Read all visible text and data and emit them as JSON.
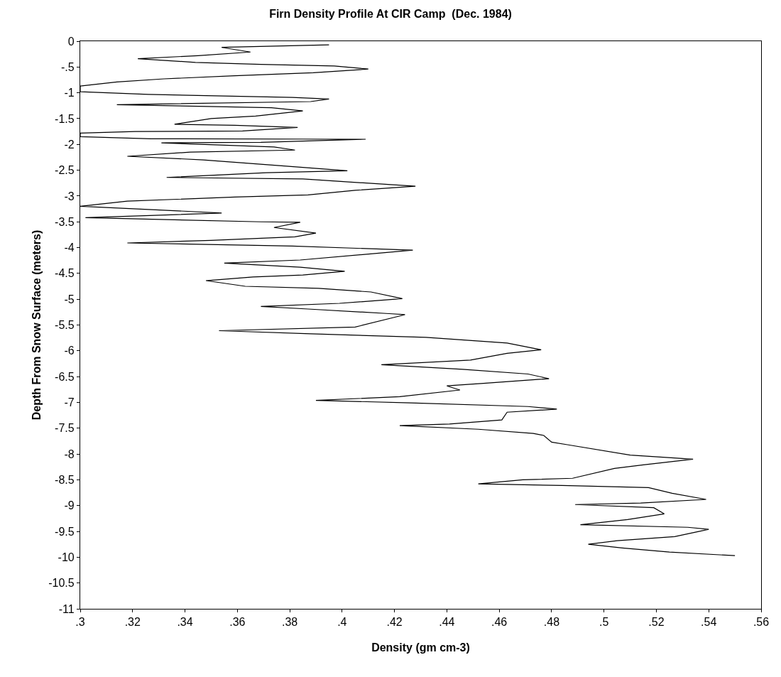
{
  "chart_data": {
    "type": "line",
    "title": "Firn Density Profile At CIR Camp  (Dec. 1984)",
    "xlabel": "Density (gm cm-3)",
    "ylabel": "Depth From Snow Surface (meters)",
    "xlim": [
      0.3,
      0.56
    ],
    "ylim": [
      -11,
      0
    ],
    "xticks": [
      {
        "value": 0.3,
        "label": ".3"
      },
      {
        "value": 0.32,
        "label": ".32"
      },
      {
        "value": 0.34,
        "label": ".34"
      },
      {
        "value": 0.36,
        "label": ".36"
      },
      {
        "value": 0.38,
        "label": ".38"
      },
      {
        "value": 0.4,
        "label": ".4"
      },
      {
        "value": 0.42,
        "label": ".42"
      },
      {
        "value": 0.44,
        "label": ".44"
      },
      {
        "value": 0.46,
        "label": ".46"
      },
      {
        "value": 0.48,
        "label": ".48"
      },
      {
        "value": 0.5,
        "label": ".5"
      },
      {
        "value": 0.52,
        "label": ".52"
      },
      {
        "value": 0.54,
        "label": ".54"
      },
      {
        "value": 0.56,
        "label": ".56"
      }
    ],
    "yticks": [
      0,
      {
        "value": -0.5,
        "label": "-.5"
      },
      -1,
      -1.5,
      -2,
      -2.5,
      -3,
      -3.5,
      -4,
      -4.5,
      -5,
      -5.5,
      -6,
      -6.5,
      -7,
      -7.5,
      -8,
      -8.5,
      -9,
      -9.5,
      -10,
      -10.5,
      -11
    ],
    "grid": false,
    "marker": "none",
    "line_style": "solid",
    "series": [
      {
        "color": "#000000",
        "x": [
          0.395,
          0.354,
          0.365,
          0.345,
          0.322,
          0.344,
          0.369,
          0.397,
          0.41,
          0.389,
          0.359,
          0.332,
          0.314,
          0.3,
          0.3,
          0.326,
          0.381,
          0.395,
          0.388,
          0.314,
          0.373,
          0.385,
          0.367,
          0.35,
          0.336,
          0.359,
          0.383,
          0.362,
          0.321,
          0.3,
          0.3,
          0.327,
          0.409,
          0.369,
          0.331,
          0.374,
          0.382,
          0.342,
          0.318,
          0.347,
          0.376,
          0.402,
          0.371,
          0.333,
          0.385,
          0.428,
          0.405,
          0.387,
          0.359,
          0.318,
          0.3,
          0.326,
          0.354,
          0.302,
          0.369,
          0.384,
          0.374,
          0.39,
          0.382,
          0.35,
          0.318,
          0.381,
          0.427,
          0.384,
          0.355,
          0.384,
          0.401,
          0.385,
          0.366,
          0.348,
          0.363,
          0.391,
          0.411,
          0.423,
          0.399,
          0.369,
          0.387,
          0.418,
          0.424,
          0.405,
          0.353,
          0.388,
          0.432,
          0.463,
          0.476,
          0.463,
          0.449,
          0.415,
          0.446,
          0.471,
          0.479,
          0.454,
          0.44,
          0.445,
          0.422,
          0.39,
          0.426,
          0.471,
          0.482,
          0.463,
          0.461,
          0.441,
          0.422,
          0.452,
          0.473,
          0.477,
          0.48,
          0.486,
          0.51,
          0.534,
          0.515,
          0.504,
          0.488,
          0.469,
          0.452,
          0.484,
          0.517,
          0.526,
          0.539,
          0.514,
          0.489,
          0.519,
          0.523,
          0.509,
          0.491,
          0.532,
          0.54,
          0.527,
          0.505,
          0.494,
          0.507,
          0.525,
          0.55
        ],
        "values": [
          -0.07,
          -0.12,
          -0.21,
          -0.28,
          -0.34,
          -0.41,
          -0.45,
          -0.48,
          -0.54,
          -0.61,
          -0.67,
          -0.73,
          -0.79,
          -0.87,
          -0.98,
          -1.03,
          -1.09,
          -1.12,
          -1.17,
          -1.23,
          -1.29,
          -1.35,
          -1.45,
          -1.5,
          -1.61,
          -1.63,
          -1.67,
          -1.74,
          -1.75,
          -1.78,
          -1.85,
          -1.89,
          -1.9,
          -1.96,
          -1.97,
          -2.05,
          -2.11,
          -2.15,
          -2.23,
          -2.3,
          -2.41,
          -2.51,
          -2.55,
          -2.64,
          -2.67,
          -2.81,
          -2.89,
          -2.98,
          -3.02,
          -3.1,
          -3.2,
          -3.26,
          -3.33,
          -3.42,
          -3.5,
          -3.51,
          -3.61,
          -3.72,
          -3.79,
          -3.86,
          -3.91,
          -3.97,
          -4.05,
          -4.24,
          -4.3,
          -4.38,
          -4.46,
          -4.53,
          -4.57,
          -4.64,
          -4.75,
          -4.79,
          -4.86,
          -4.99,
          -5.08,
          -5.14,
          -5.19,
          -5.28,
          -5.3,
          -5.54,
          -5.61,
          -5.67,
          -5.74,
          -5.85,
          -5.98,
          -6.05,
          -6.18,
          -6.27,
          -6.36,
          -6.45,
          -6.54,
          -6.63,
          -6.68,
          -6.76,
          -6.89,
          -6.96,
          -7.01,
          -7.08,
          -7.13,
          -7.19,
          -7.34,
          -7.42,
          -7.45,
          -7.52,
          -7.6,
          -7.64,
          -7.77,
          -7.82,
          -8.02,
          -8.1,
          -8.21,
          -8.28,
          -8.47,
          -8.5,
          -8.58,
          -8.61,
          -8.65,
          -8.76,
          -8.88,
          -8.95,
          -8.98,
          -9.04,
          -9.16,
          -9.27,
          -9.37,
          -9.42,
          -9.46,
          -9.6,
          -9.68,
          -9.75,
          -9.82,
          -9.9,
          -9.97
        ]
      }
    ]
  }
}
